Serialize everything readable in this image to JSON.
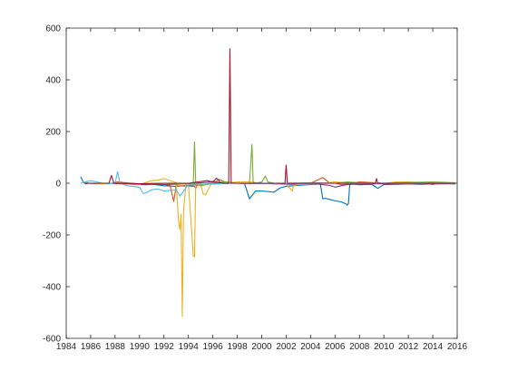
{
  "chart_data": {
    "type": "line",
    "title": "",
    "xlabel": "",
    "ylabel": "",
    "xlim": [
      1984,
      2016
    ],
    "ylim": [
      -600,
      600
    ],
    "x_ticks": [
      1984,
      1986,
      1988,
      1990,
      1992,
      1994,
      1996,
      1998,
      2000,
      2002,
      2004,
      2006,
      2008,
      2010,
      2012,
      2014,
      2016
    ],
    "y_ticks": [
      -600,
      -400,
      -200,
      0,
      200,
      400,
      600
    ],
    "grid": false,
    "legend": "none",
    "series": [
      {
        "color": "#0072BD",
        "x": [
          1985.2,
          1985.4,
          1985.6,
          1985.8,
          1986.5,
          1987.5,
          1988.5,
          1989.5,
          1990.5,
          1991.0,
          1992.0,
          1993.0,
          1994.0,
          1995.0,
          1996.0,
          1997.0,
          1998.0,
          1998.6,
          1999.0,
          1999.5,
          2000.0,
          2000.5,
          2001.0,
          2001.5,
          2002.0,
          2003.0,
          2004.0,
          2004.8,
          2005.0,
          2005.2,
          2005.5,
          2006.0,
          2006.5,
          2006.9,
          2007.0,
          2007.1,
          2007.2,
          2007.4,
          2008.0,
          2009.0,
          2009.5,
          2010.0,
          2011.0,
          2012.0,
          2013.0,
          2014.0,
          2015.0,
          2015.8
        ],
        "y": [
          24,
          5,
          -3,
          0,
          -2,
          0,
          -2,
          -4,
          -6,
          -4,
          -10,
          -12,
          -8,
          -5,
          -3,
          0,
          0,
          -2,
          -60,
          -30,
          -30,
          -32,
          -35,
          -18,
          -12,
          -8,
          -5,
          -3,
          -60,
          -58,
          -62,
          -68,
          -72,
          -80,
          -85,
          -78,
          -5,
          -3,
          -6,
          -4,
          -20,
          -5,
          -4,
          -3,
          -4,
          -3,
          -2,
          -3
        ]
      },
      {
        "color": "#D95319",
        "x": [
          1985.8,
          1987.5,
          1988.2,
          1990.0,
          1992.0,
          1992.5,
          1992.8,
          1993.0,
          1994.5,
          1994.6,
          1994.7,
          1995.0,
          1996.0,
          1996.5,
          1997.0,
          1998.0,
          1999.0,
          2000.0,
          2001.0,
          2002.0,
          2003.0,
          2004.0,
          2005.0,
          2005.5,
          2006.0,
          2006.5,
          2007.0,
          2007.2,
          2008.0,
          2009.0,
          2010.0,
          2011.0,
          2012.0,
          2013.0,
          2014.0,
          2014.5,
          2015.8
        ],
        "y": [
          0,
          -2,
          5,
          -3,
          -5,
          -8,
          -70,
          -10,
          -12,
          -20,
          -8,
          -5,
          0,
          15,
          5,
          0,
          -2,
          0,
          -3,
          -4,
          -5,
          0,
          22,
          3,
          0,
          -5,
          -4,
          -2,
          5,
          3,
          -2,
          0,
          -3,
          2,
          -5,
          0,
          -2
        ]
      },
      {
        "color": "#EDB120",
        "x": [
          1985.5,
          1986.0,
          1987.0,
          1988.0,
          1989.0,
          1990.0,
          1991.0,
          1991.5,
          1992.0,
          1992.5,
          1993.0,
          1993.2,
          1993.3,
          1993.4,
          1993.5,
          1993.6,
          1993.8,
          1994.0,
          1994.4,
          1994.5,
          1994.6,
          1995.0,
          1995.2,
          1995.4,
          1996.0,
          1997.0,
          1998.0,
          1999.0,
          2000.0,
          2001.0,
          2002.0,
          2002.5,
          2002.6,
          2003.0,
          2004.0,
          2005.0,
          2006.0,
          2007.0,
          2008.0,
          2009.0,
          2010.0,
          2011.0,
          2012.0,
          2013.0,
          2014.0,
          2015.8
        ],
        "y": [
          5,
          0,
          -2,
          0,
          -3,
          -5,
          10,
          12,
          18,
          10,
          2,
          -150,
          -180,
          -120,
          -515,
          -110,
          0,
          0,
          -280,
          -285,
          5,
          0,
          -40,
          -45,
          10,
          0,
          5,
          5,
          0,
          -2,
          -5,
          -30,
          -10,
          -5,
          -3,
          0,
          5,
          2,
          0,
          3,
          0,
          5,
          5,
          3,
          2,
          0
        ]
      },
      {
        "color": "#7E2F8E",
        "x": [
          1985.5,
          1987.5,
          1990.0,
          1992.0,
          1994.0,
          1996.0,
          1996.3,
          1996.6,
          1997.0,
          1998.0,
          2000.0,
          2002.0,
          2004.0,
          2005.5,
          2006.0,
          2006.5,
          2007.0,
          2008.0,
          2010.0,
          2012.0,
          2014.0,
          2015.8
        ],
        "y": [
          0,
          0,
          -3,
          -5,
          -2,
          5,
          20,
          5,
          0,
          0,
          0,
          -2,
          0,
          -8,
          -15,
          -10,
          -5,
          -3,
          -2,
          0,
          -1,
          0
        ]
      },
      {
        "color": "#77AC30",
        "x": [
          1985.5,
          1988.0,
          1990.0,
          1992.0,
          1993.5,
          1994.4,
          1994.5,
          1994.6,
          1995.0,
          1996.0,
          1997.0,
          1998.0,
          1999.0,
          1999.2,
          1999.3,
          1999.5,
          2000.0,
          2000.3,
          2000.5,
          2001.0,
          2002.0,
          2004.0,
          2006.0,
          2007.0,
          2008.0,
          2010.0,
          2012.0,
          2014.0,
          2015.8
        ],
        "y": [
          0,
          0,
          -2,
          0,
          -2,
          0,
          160,
          0,
          -10,
          0,
          5,
          0,
          0,
          150,
          5,
          0,
          5,
          28,
          5,
          0,
          0,
          2,
          0,
          5,
          2,
          0,
          3,
          5,
          2
        ]
      },
      {
        "color": "#4DBEEE",
        "x": [
          1985.2,
          1985.5,
          1986.0,
          1987.0,
          1987.5,
          1988.0,
          1988.2,
          1988.4,
          1989.0,
          1990.0,
          1990.3,
          1990.6,
          1991.0,
          1991.5,
          1992.0,
          1992.5,
          1993.0,
          1993.3,
          1994.0,
          1996.0,
          1998.0,
          2000.0,
          2002.0,
          2004.0,
          2006.0,
          2008.0,
          2010.0,
          2012.0,
          2014.0,
          2015.8
        ],
        "y": [
          0,
          5,
          10,
          0,
          -2,
          0,
          45,
          0,
          -10,
          -15,
          -40,
          -35,
          -25,
          -22,
          -30,
          -28,
          -25,
          -50,
          -5,
          -3,
          0,
          -2,
          0,
          -1,
          0,
          -1,
          0,
          -1,
          0,
          -1
        ]
      },
      {
        "color": "#A2142F",
        "x": [
          1985.5,
          1987.5,
          1987.7,
          1987.9,
          1990.0,
          1992.0,
          1994.0,
          1995.5,
          1996.0,
          1997.0,
          1997.3,
          1997.4,
          1997.5,
          1997.6,
          1998.0,
          2000.0,
          2001.9,
          2002.0,
          2002.1,
          2004.0,
          2006.0,
          2008.0,
          2009.3,
          2009.4,
          2009.5,
          2010.0,
          2012.0,
          2014.0,
          2015.8
        ],
        "y": [
          0,
          0,
          30,
          0,
          -2,
          0,
          0,
          10,
          5,
          0,
          0,
          520,
          0,
          0,
          0,
          0,
          0,
          70,
          0,
          0,
          0,
          0,
          0,
          18,
          0,
          0,
          0,
          0,
          0
        ]
      }
    ]
  }
}
